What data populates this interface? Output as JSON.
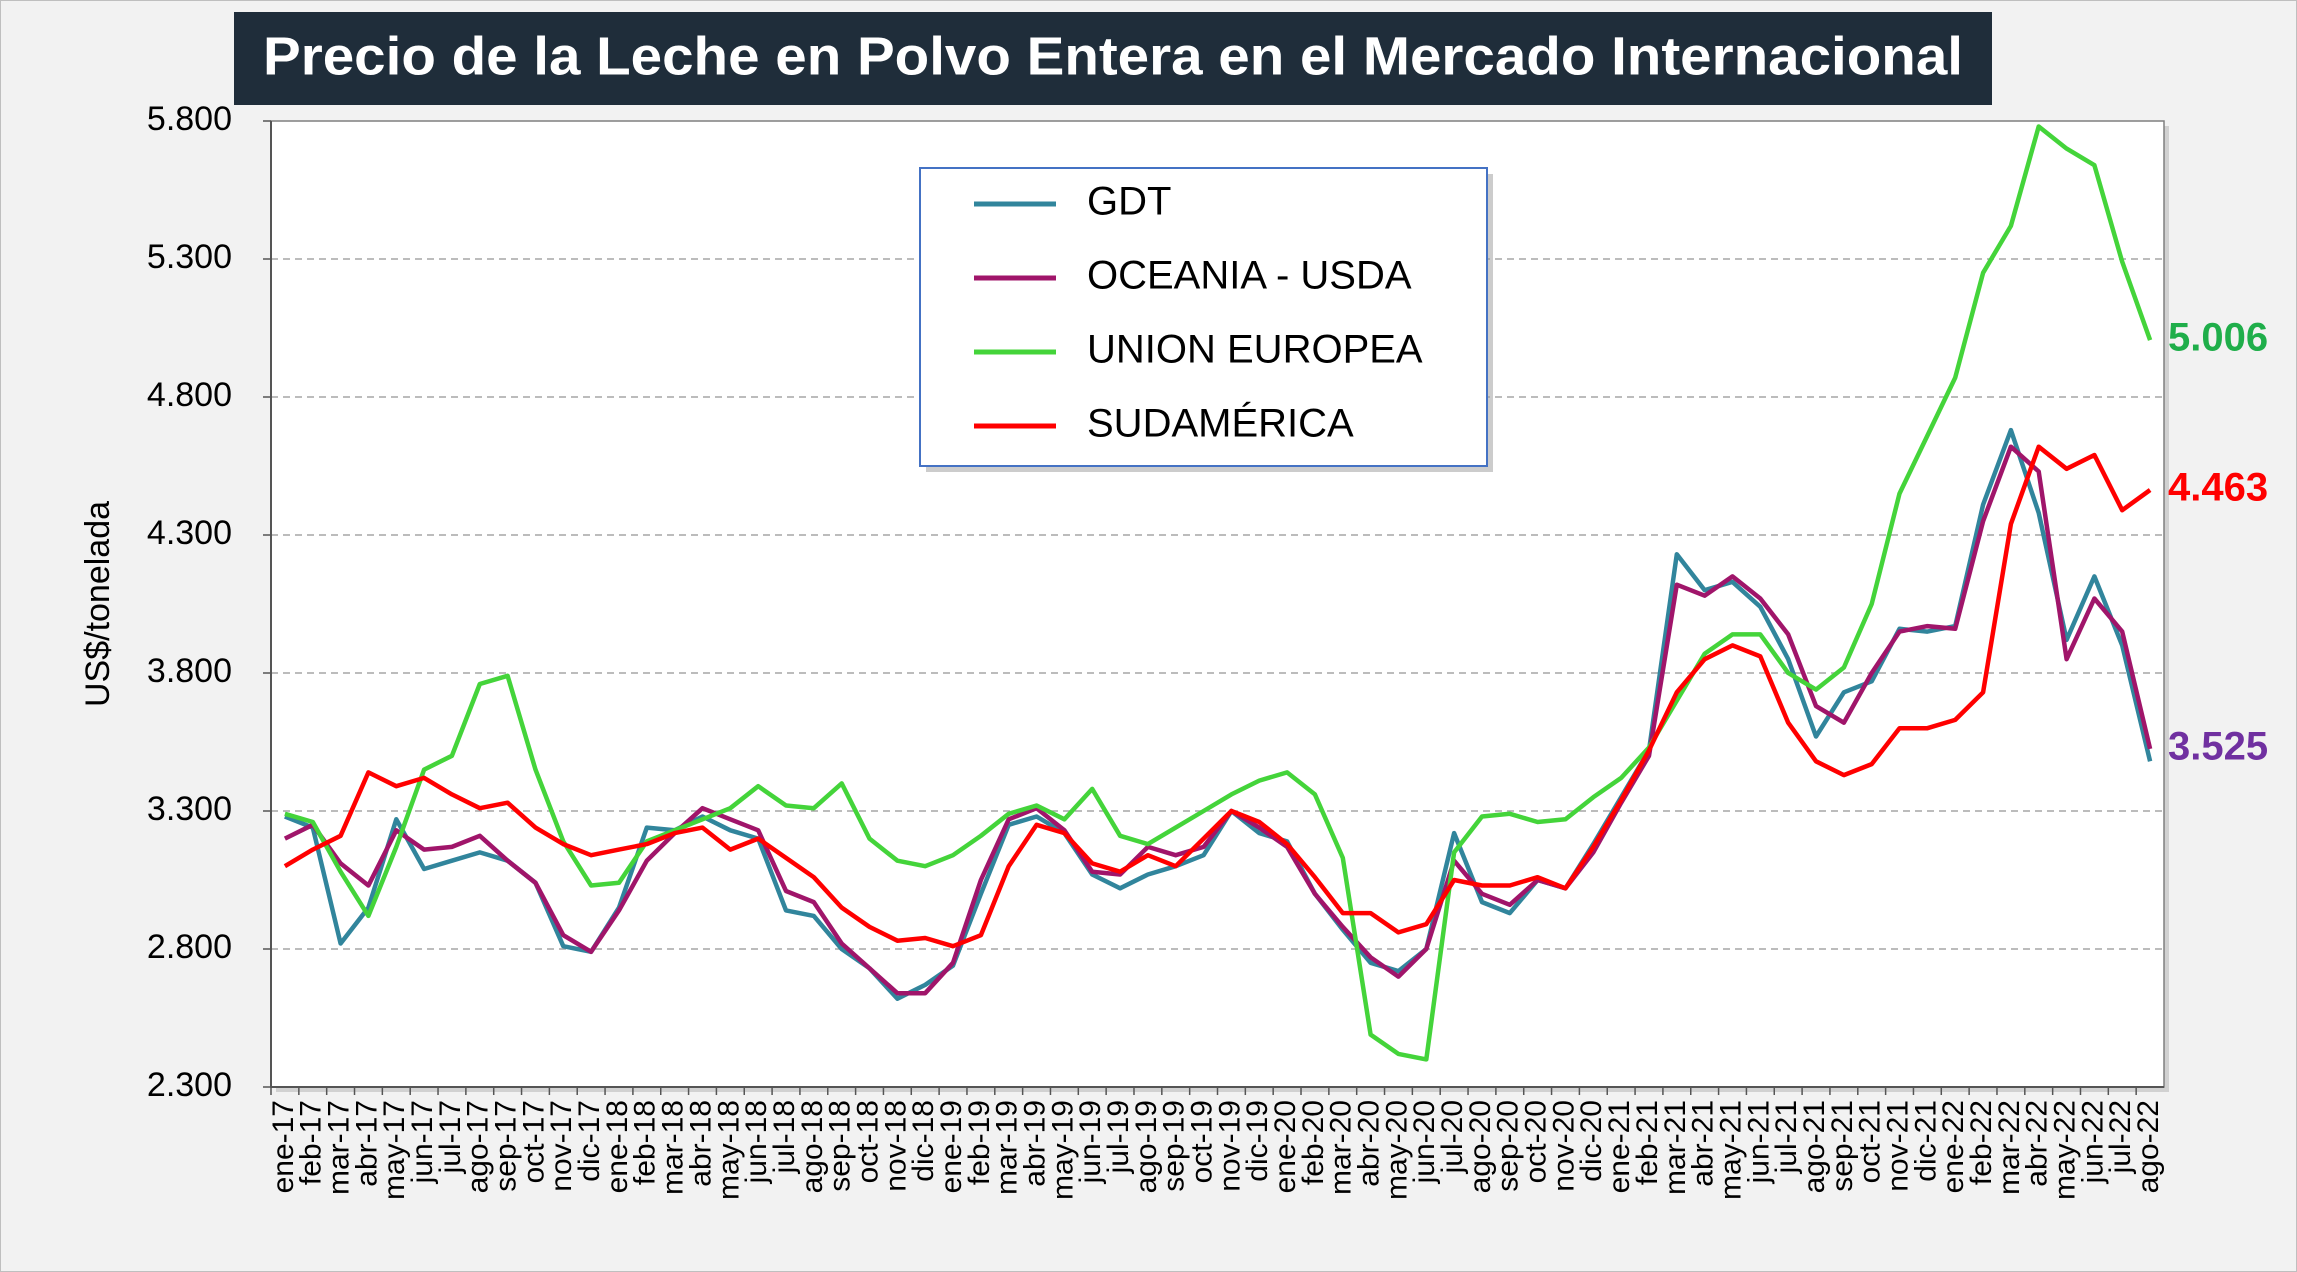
{
  "chart_data": {
    "type": "line",
    "title": "Precio de la Leche en Polvo Entera en el Mercado Internacional",
    "y_label": "US$/tonelada",
    "categories": [
      "ene-17",
      "feb-17",
      "mar-17",
      "abr-17",
      "may-17",
      "jun-17",
      "jul-17",
      "ago-17",
      "sep-17",
      "oct-17",
      "nov-17",
      "dic-17",
      "ene-18",
      "feb-18",
      "mar-18",
      "abr-18",
      "may-18",
      "jun-18",
      "jul-18",
      "ago-18",
      "sep-18",
      "oct-18",
      "nov-18",
      "dic-18",
      "ene-19",
      "feb-19",
      "mar-19",
      "abr-19",
      "may-19",
      "jun-19",
      "jul-19",
      "ago-19",
      "sep-19",
      "oct-19",
      "nov-19",
      "dic-19",
      "ene-20",
      "feb-20",
      "mar-20",
      "abr-20",
      "may-20",
      "jun-20",
      "jul-20",
      "ago-20",
      "sep-20",
      "oct-20",
      "nov-20",
      "dic-20",
      "ene-21",
      "feb-21",
      "mar-21",
      "abr-21",
      "may-21",
      "jun-21",
      "jul-21",
      "ago-21",
      "sep-21",
      "oct-21",
      "nov-21",
      "dic-21",
      "ene-22",
      "feb-22",
      "mar-22",
      "abr-22",
      "may-22",
      "jun-22",
      "jul-22",
      "ago-22"
    ],
    "series": [
      {
        "name": "GDT",
        "color": "#31859c",
        "values": [
          3280,
          3240,
          2820,
          2950,
          3270,
          3090,
          3120,
          3150,
          3120,
          3040,
          2810,
          2790,
          2950,
          3240,
          3230,
          3280,
          3230,
          3200,
          2940,
          2920,
          2800,
          2730,
          2620,
          2670,
          2740,
          3000,
          3250,
          3280,
          3220,
          3070,
          3020,
          3070,
          3100,
          3140,
          3300,
          3220,
          3190,
          3000,
          2870,
          2750,
          2720,
          2800,
          3220,
          2970,
          2930,
          3050,
          3020,
          3180,
          3350,
          3520,
          4230,
          4100,
          4130,
          4040,
          3850,
          3570,
          3730,
          3770,
          3960,
          3950,
          3970,
          4410,
          4680,
          4380,
          3920,
          4150,
          3900,
          3480
        ]
      },
      {
        "name": "OCEANIA - USDA",
        "color": "#a0156a",
        "values": [
          3200,
          3250,
          3110,
          3030,
          3230,
          3160,
          3170,
          3210,
          3120,
          3040,
          2850,
          2790,
          2940,
          3120,
          3220,
          3310,
          3270,
          3230,
          3010,
          2970,
          2820,
          2730,
          2640,
          2640,
          2750,
          3050,
          3270,
          3310,
          3230,
          3080,
          3070,
          3170,
          3140,
          3170,
          3300,
          3240,
          3170,
          3000,
          2880,
          2770,
          2700,
          2800,
          3120,
          3000,
          2960,
          3050,
          3020,
          3150,
          3330,
          3500,
          4120,
          4080,
          4150,
          4070,
          3940,
          3680,
          3620,
          3800,
          3950,
          3970,
          3960,
          4350,
          4620,
          4530,
          3850,
          4070,
          3950,
          3525
        ]
      },
      {
        "name": "UNION EUROPEA",
        "color": "#44d43a",
        "values": [
          3290,
          3260,
          3080,
          2920,
          3170,
          3450,
          3500,
          3760,
          3790,
          3450,
          3190,
          3030,
          3040,
          3190,
          3230,
          3270,
          3310,
          3390,
          3320,
          3310,
          3400,
          3200,
          3120,
          3100,
          3140,
          3210,
          3290,
          3320,
          3270,
          3380,
          3210,
          3180,
          3240,
          3300,
          3360,
          3410,
          3440,
          3360,
          3130,
          2490,
          2420,
          2400,
          3150,
          3280,
          3290,
          3260,
          3270,
          3350,
          3420,
          3530,
          3700,
          3870,
          3940,
          3940,
          3800,
          3740,
          3820,
          4050,
          4450,
          4660,
          4870,
          5250,
          5420,
          5780,
          5700,
          5640,
          5290,
          5006
        ]
      },
      {
        "name": "SUDAMÉRICA",
        "color": "#ff0000",
        "values": [
          3100,
          3160,
          3210,
          3440,
          3390,
          3420,
          3360,
          3310,
          3330,
          3240,
          3180,
          3140,
          3160,
          3180,
          3220,
          3240,
          3160,
          3200,
          3130,
          3060,
          2950,
          2880,
          2830,
          2840,
          2810,
          2850,
          3100,
          3250,
          3220,
          3110,
          3080,
          3140,
          3100,
          3200,
          3300,
          3260,
          3180,
          3060,
          2930,
          2930,
          2860,
          2890,
          3050,
          3030,
          3030,
          3060,
          3020,
          3170,
          3340,
          3520,
          3730,
          3850,
          3900,
          3860,
          3620,
          3480,
          3430,
          3470,
          3600,
          3600,
          3630,
          3730,
          4340,
          4620,
          4540,
          4590,
          4390,
          4463
        ]
      }
    ],
    "ylim": [
      2300,
      5800
    ],
    "yticks": [
      {
        "value": 2300,
        "label": "2.300"
      },
      {
        "value": 2800,
        "label": "2.800"
      },
      {
        "value": 3300,
        "label": "3.300"
      },
      {
        "value": 3800,
        "label": "3.800"
      },
      {
        "value": 4300,
        "label": "4.300"
      },
      {
        "value": 4800,
        "label": "4.800"
      },
      {
        "value": 5300,
        "label": "5.300"
      },
      {
        "value": 5800,
        "label": "5.800"
      }
    ],
    "grid": true,
    "legend_position": "top",
    "annotations": [
      {
        "text": "5.006",
        "color": "#1fae4a"
      },
      {
        "text": "4.463",
        "color": "#ff0000"
      },
      {
        "text": "3.525",
        "color": "#7030a0"
      }
    ]
  }
}
